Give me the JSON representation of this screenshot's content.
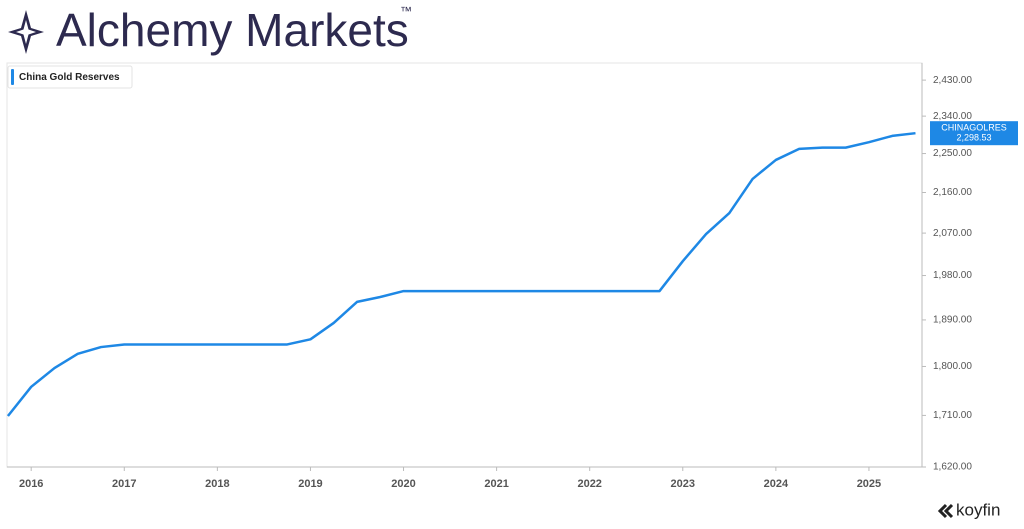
{
  "branding": {
    "brand": "Alchemy Markets",
    "trademark": "™",
    "source": "koyfin"
  },
  "chart_data": {
    "type": "line",
    "x": [
      2015.75,
      2016,
      2016.25,
      2016.5,
      2016.75,
      2017,
      2017.25,
      2017.5,
      2017.75,
      2018,
      2018.25,
      2018.5,
      2018.75,
      2019,
      2019.25,
      2019.5,
      2019.75,
      2020,
      2020.25,
      2020.5,
      2020.75,
      2021,
      2021.25,
      2021.5,
      2021.75,
      2022,
      2022.25,
      2022.5,
      2022.75,
      2023,
      2023.25,
      2023.5,
      2023.75,
      2024,
      2024.25,
      2024.5,
      2024.75,
      2025,
      2025.25,
      2025.5
    ],
    "series": [
      {
        "name": "China Gold Reserves",
        "ticker": "CHINAGOLRES",
        "color": "#1e88e5",
        "values": [
          1709,
          1762,
          1797,
          1824,
          1837,
          1842,
          1842,
          1842,
          1842,
          1842,
          1842,
          1842,
          1842,
          1852,
          1884,
          1926,
          1936,
          1948,
          1948,
          1948,
          1948,
          1948,
          1948,
          1948,
          1948,
          1948,
          1948,
          1948,
          1948,
          2010,
          2068,
          2114,
          2191,
          2235,
          2261,
          2264,
          2264,
          2277,
          2292,
          2298.53
        ],
        "value_labels": [
          null,
          null,
          null,
          null,
          null,
          null,
          null,
          null,
          null,
          null,
          null,
          null,
          null,
          null,
          null,
          null,
          null,
          null,
          null,
          null,
          null,
          null,
          null,
          null,
          null,
          null,
          null,
          null,
          null,
          null,
          null,
          null,
          null,
          null,
          null,
          null,
          null,
          null,
          null,
          "2,298.53"
        ]
      }
    ],
    "xlim": [
      2015.74,
      2025.57
    ],
    "xticks": [
      2016,
      2017,
      2018,
      2019,
      2020,
      2021,
      2022,
      2023,
      2024,
      2025
    ],
    "ylim": [
      1620,
      2474
    ],
    "log_scale": true,
    "yticks": [
      {
        "value": 1620,
        "label": "1,620.00"
      },
      {
        "value": 1710,
        "label": "1,710.00"
      },
      {
        "value": 1800,
        "label": "1,800.00"
      },
      {
        "value": 1890,
        "label": "1,890.00"
      },
      {
        "value": 1980,
        "label": "1,980.00"
      },
      {
        "value": 2070,
        "label": "2,070.00"
      },
      {
        "value": 2160,
        "label": "2,160.00"
      },
      {
        "value": 2250,
        "label": "2,250.00"
      },
      {
        "value": 2340,
        "label": "2,340.00"
      },
      {
        "value": 2430,
        "label": "2,430.00"
      }
    ],
    "grid": false,
    "legend": "top-left"
  }
}
